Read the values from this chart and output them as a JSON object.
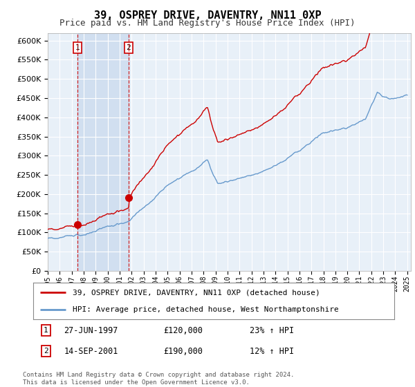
{
  "title": "39, OSPREY DRIVE, DAVENTRY, NN11 0XP",
  "subtitle": "Price paid vs. HM Land Registry's House Price Index (HPI)",
  "ytick_values": [
    0,
    50000,
    100000,
    150000,
    200000,
    250000,
    300000,
    350000,
    400000,
    450000,
    500000,
    550000,
    600000
  ],
  "legend_line1": "39, OSPREY DRIVE, DAVENTRY, NN11 0XP (detached house)",
  "legend_line2": "HPI: Average price, detached house, West Northamptonshire",
  "transaction1_date": "27-JUN-1997",
  "transaction1_price": 120000,
  "transaction1_hpi": "23% ↑ HPI",
  "transaction2_date": "14-SEP-2001",
  "transaction2_price": 190000,
  "transaction2_hpi": "12% ↑ HPI",
  "footer": "Contains HM Land Registry data © Crown copyright and database right 2024.\nThis data is licensed under the Open Government Licence v3.0.",
  "line_color": "#cc0000",
  "hpi_color": "#6699cc",
  "plot_bg": "#e8f0f8",
  "grid_color": "#ffffff",
  "vline_color": "#cc0000",
  "box_color": "#cc0000",
  "shade_color": "#c8d8ee",
  "date1_year": 1997.5,
  "date2_year": 2001.75
}
